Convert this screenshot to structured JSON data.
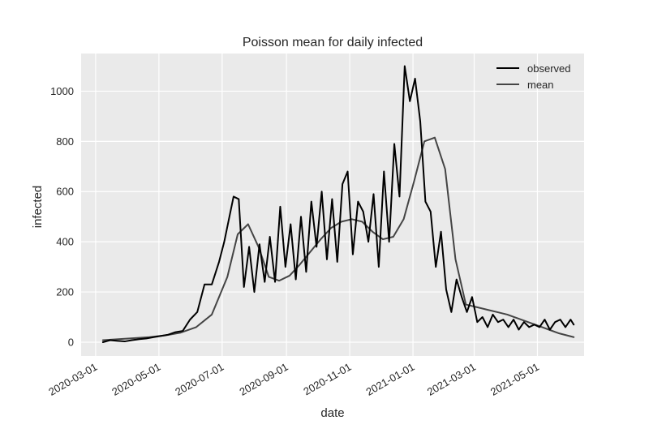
{
  "chart_data": {
    "type": "line",
    "title": "Poisson mean for daily infected",
    "xlabel": "date",
    "ylabel": "infected",
    "x_ticks": [
      "2020-03-01",
      "2020-05-01",
      "2020-07-01",
      "2020-09-01",
      "2020-11-01",
      "2021-01-01",
      "2021-03-01",
      "2021-05-01"
    ],
    "y_ticks": [
      0,
      200,
      400,
      600,
      800,
      1000
    ],
    "xlim": [
      "2020-02-16",
      "2021-06-15"
    ],
    "ylim": [
      -55,
      1150
    ],
    "grid": true,
    "legend_position": "top-right",
    "colors": {
      "observed": "#000000",
      "mean": "#444444",
      "plot_bg": "#eaeaea",
      "grid": "#ffffff"
    },
    "series": [
      {
        "name": "observed",
        "x": [
          "2020-03-08",
          "2020-03-15",
          "2020-03-22",
          "2020-03-29",
          "2020-04-05",
          "2020-04-12",
          "2020-04-19",
          "2020-04-26",
          "2020-05-03",
          "2020-05-10",
          "2020-05-17",
          "2020-05-24",
          "2020-05-31",
          "2020-06-07",
          "2020-06-14",
          "2020-06-21",
          "2020-06-28",
          "2020-07-03",
          "2020-07-08",
          "2020-07-12",
          "2020-07-17",
          "2020-07-22",
          "2020-07-27",
          "2020-08-01",
          "2020-08-06",
          "2020-08-11",
          "2020-08-16",
          "2020-08-21",
          "2020-08-26",
          "2020-08-31",
          "2020-09-05",
          "2020-09-10",
          "2020-09-15",
          "2020-09-20",
          "2020-09-25",
          "2020-09-30",
          "2020-10-05",
          "2020-10-10",
          "2020-10-15",
          "2020-10-20",
          "2020-10-25",
          "2020-10-30",
          "2020-11-04",
          "2020-11-09",
          "2020-11-14",
          "2020-11-19",
          "2020-11-24",
          "2020-11-29",
          "2020-12-04",
          "2020-12-09",
          "2020-12-14",
          "2020-12-19",
          "2020-12-24",
          "2020-12-29",
          "2021-01-03",
          "2021-01-08",
          "2021-01-13",
          "2021-01-18",
          "2021-01-23",
          "2021-01-28",
          "2021-02-02",
          "2021-02-07",
          "2021-02-12",
          "2021-02-17",
          "2021-02-22",
          "2021-02-27",
          "2021-03-04",
          "2021-03-09",
          "2021-03-14",
          "2021-03-19",
          "2021-03-24",
          "2021-03-29",
          "2021-04-03",
          "2021-04-08",
          "2021-04-13",
          "2021-04-18",
          "2021-04-23",
          "2021-04-28",
          "2021-05-03",
          "2021-05-08",
          "2021-05-13",
          "2021-05-18",
          "2021-05-23",
          "2021-05-28",
          "2021-06-02",
          "2021-06-05"
        ],
        "values": [
          0,
          8,
          5,
          3,
          8,
          12,
          15,
          20,
          25,
          30,
          40,
          45,
          90,
          120,
          230,
          230,
          320,
          400,
          500,
          580,
          570,
          220,
          380,
          200,
          390,
          240,
          420,
          240,
          540,
          300,
          470,
          250,
          500,
          280,
          560,
          380,
          600,
          330,
          570,
          320,
          630,
          680,
          350,
          560,
          520,
          400,
          590,
          300,
          680,
          400,
          790,
          580,
          1100,
          960,
          1050,
          880,
          560,
          520,
          300,
          440,
          210,
          120,
          250,
          180,
          120,
          180,
          80,
          100,
          60,
          110,
          80,
          90,
          60,
          90,
          50,
          80,
          60,
          70,
          60,
          90,
          50,
          80,
          90,
          60,
          90,
          70
        ]
      },
      {
        "name": "mean",
        "x": [
          "2020-03-08",
          "2020-03-23",
          "2020-04-07",
          "2020-04-22",
          "2020-05-07",
          "2020-05-22",
          "2020-06-06",
          "2020-06-21",
          "2020-07-06",
          "2020-07-16",
          "2020-07-26",
          "2020-08-05",
          "2020-08-15",
          "2020-08-25",
          "2020-09-04",
          "2020-09-14",
          "2020-09-24",
          "2020-10-04",
          "2020-10-14",
          "2020-10-24",
          "2020-11-03",
          "2020-11-13",
          "2020-11-23",
          "2020-12-03",
          "2020-12-13",
          "2020-12-23",
          "2021-01-02",
          "2021-01-12",
          "2021-01-22",
          "2021-02-01",
          "2021-02-11",
          "2021-02-21",
          "2021-03-03",
          "2021-03-13",
          "2021-03-23",
          "2021-04-02",
          "2021-04-12",
          "2021-04-22",
          "2021-05-02",
          "2021-05-12",
          "2021-05-22",
          "2021-06-05"
        ],
        "values": [
          8,
          12,
          16,
          20,
          27,
          38,
          60,
          110,
          260,
          430,
          470,
          380,
          260,
          245,
          265,
          310,
          360,
          410,
          455,
          480,
          490,
          480,
          440,
          410,
          420,
          490,
          640,
          800,
          815,
          690,
          330,
          150,
          140,
          130,
          120,
          110,
          95,
          80,
          65,
          50,
          35,
          20
        ]
      }
    ]
  }
}
